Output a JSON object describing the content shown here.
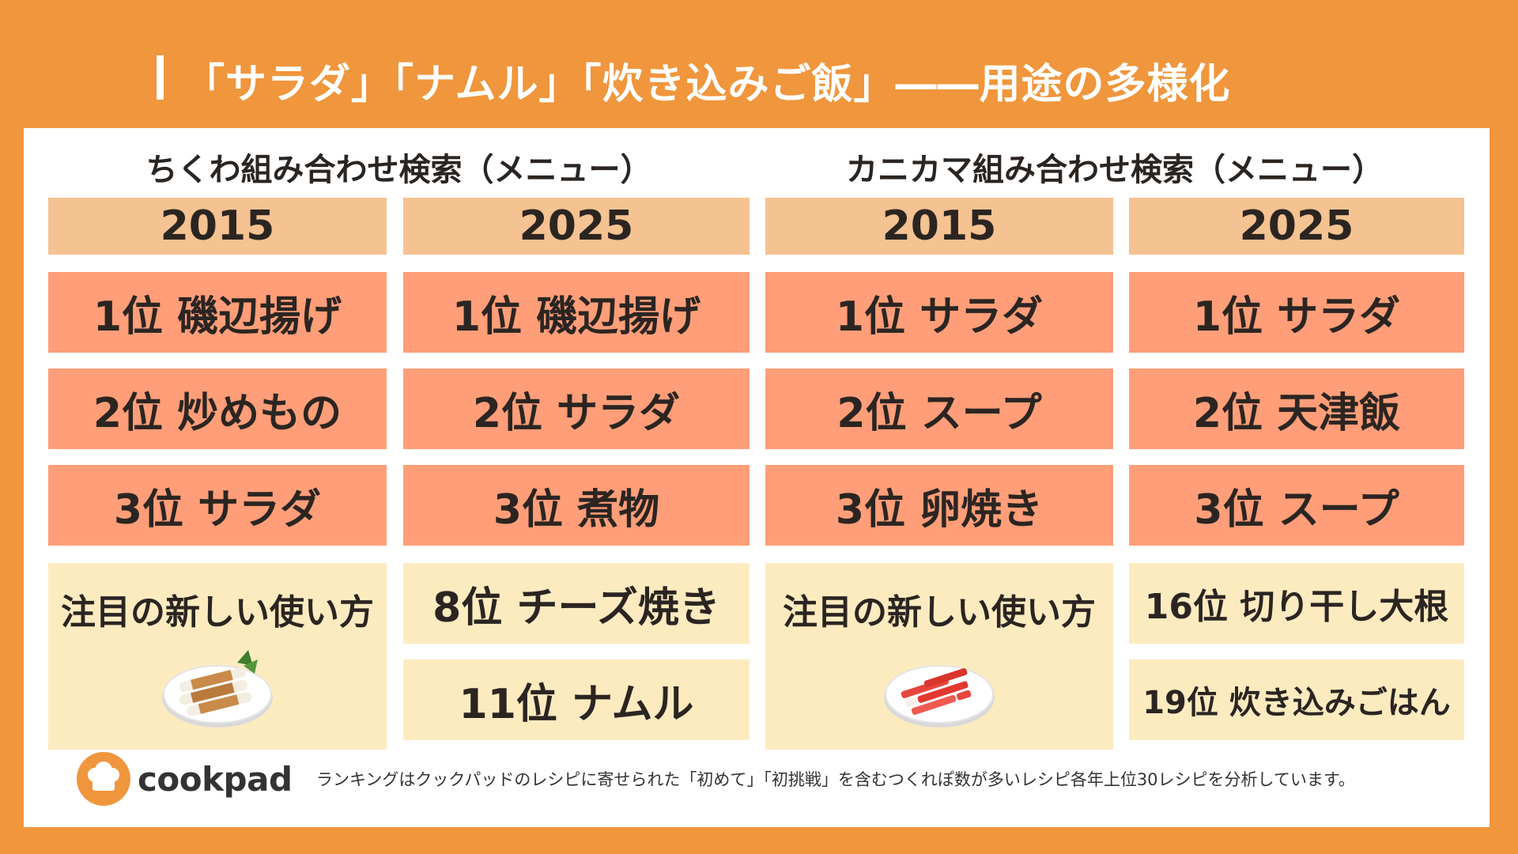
{
  "title": "「サラダ」「ナムル」「炊き込みご飯」――用途の多様化",
  "sections": [
    {
      "heading": "ちくわ組み合わせ検索（メニュー）",
      "columns": [
        {
          "year": "2015",
          "ranks": [
            "1位 磯辺揚げ",
            "2位 炒めもの",
            "3位 サラダ"
          ],
          "feature_label": "注目の新しい使い方",
          "feature_image": "chikuwa-dish-icon"
        },
        {
          "year": "2025",
          "ranks": [
            "1位 磯辺揚げ",
            "2位 サラダ",
            "3位 煮物"
          ],
          "features": [
            "8位 チーズ焼き",
            "11位 ナムル"
          ]
        }
      ]
    },
    {
      "heading": "カニカマ組み合わせ検索（メニュー）",
      "columns": [
        {
          "year": "2015",
          "ranks": [
            "1位 サラダ",
            "2位 スープ",
            "3位 卵焼き"
          ],
          "feature_label": "注目の新しい使い方",
          "feature_image": "kanikama-dish-icon"
        },
        {
          "year": "2025",
          "ranks": [
            "1位 サラダ",
            "2位 天津飯",
            "3位 スープ"
          ],
          "features": [
            "16位 切り干し大根",
            "19位 炊き込みごはん"
          ]
        }
      ]
    }
  ],
  "footer": {
    "logo_text": "cookpad",
    "logo_icon": "chef-hat-icon",
    "note": "ランキングはクックパッドのレシピに寄せられた「初めて」「初挑戦」を含むつくれぽ数が多いレシピ各年上位30レシピを分析しています。"
  },
  "colors": {
    "background": "#F0963C",
    "year_header": "#F5C291",
    "rank_cell": "#FF9E78",
    "feature_cell": "#FDEBC0"
  }
}
